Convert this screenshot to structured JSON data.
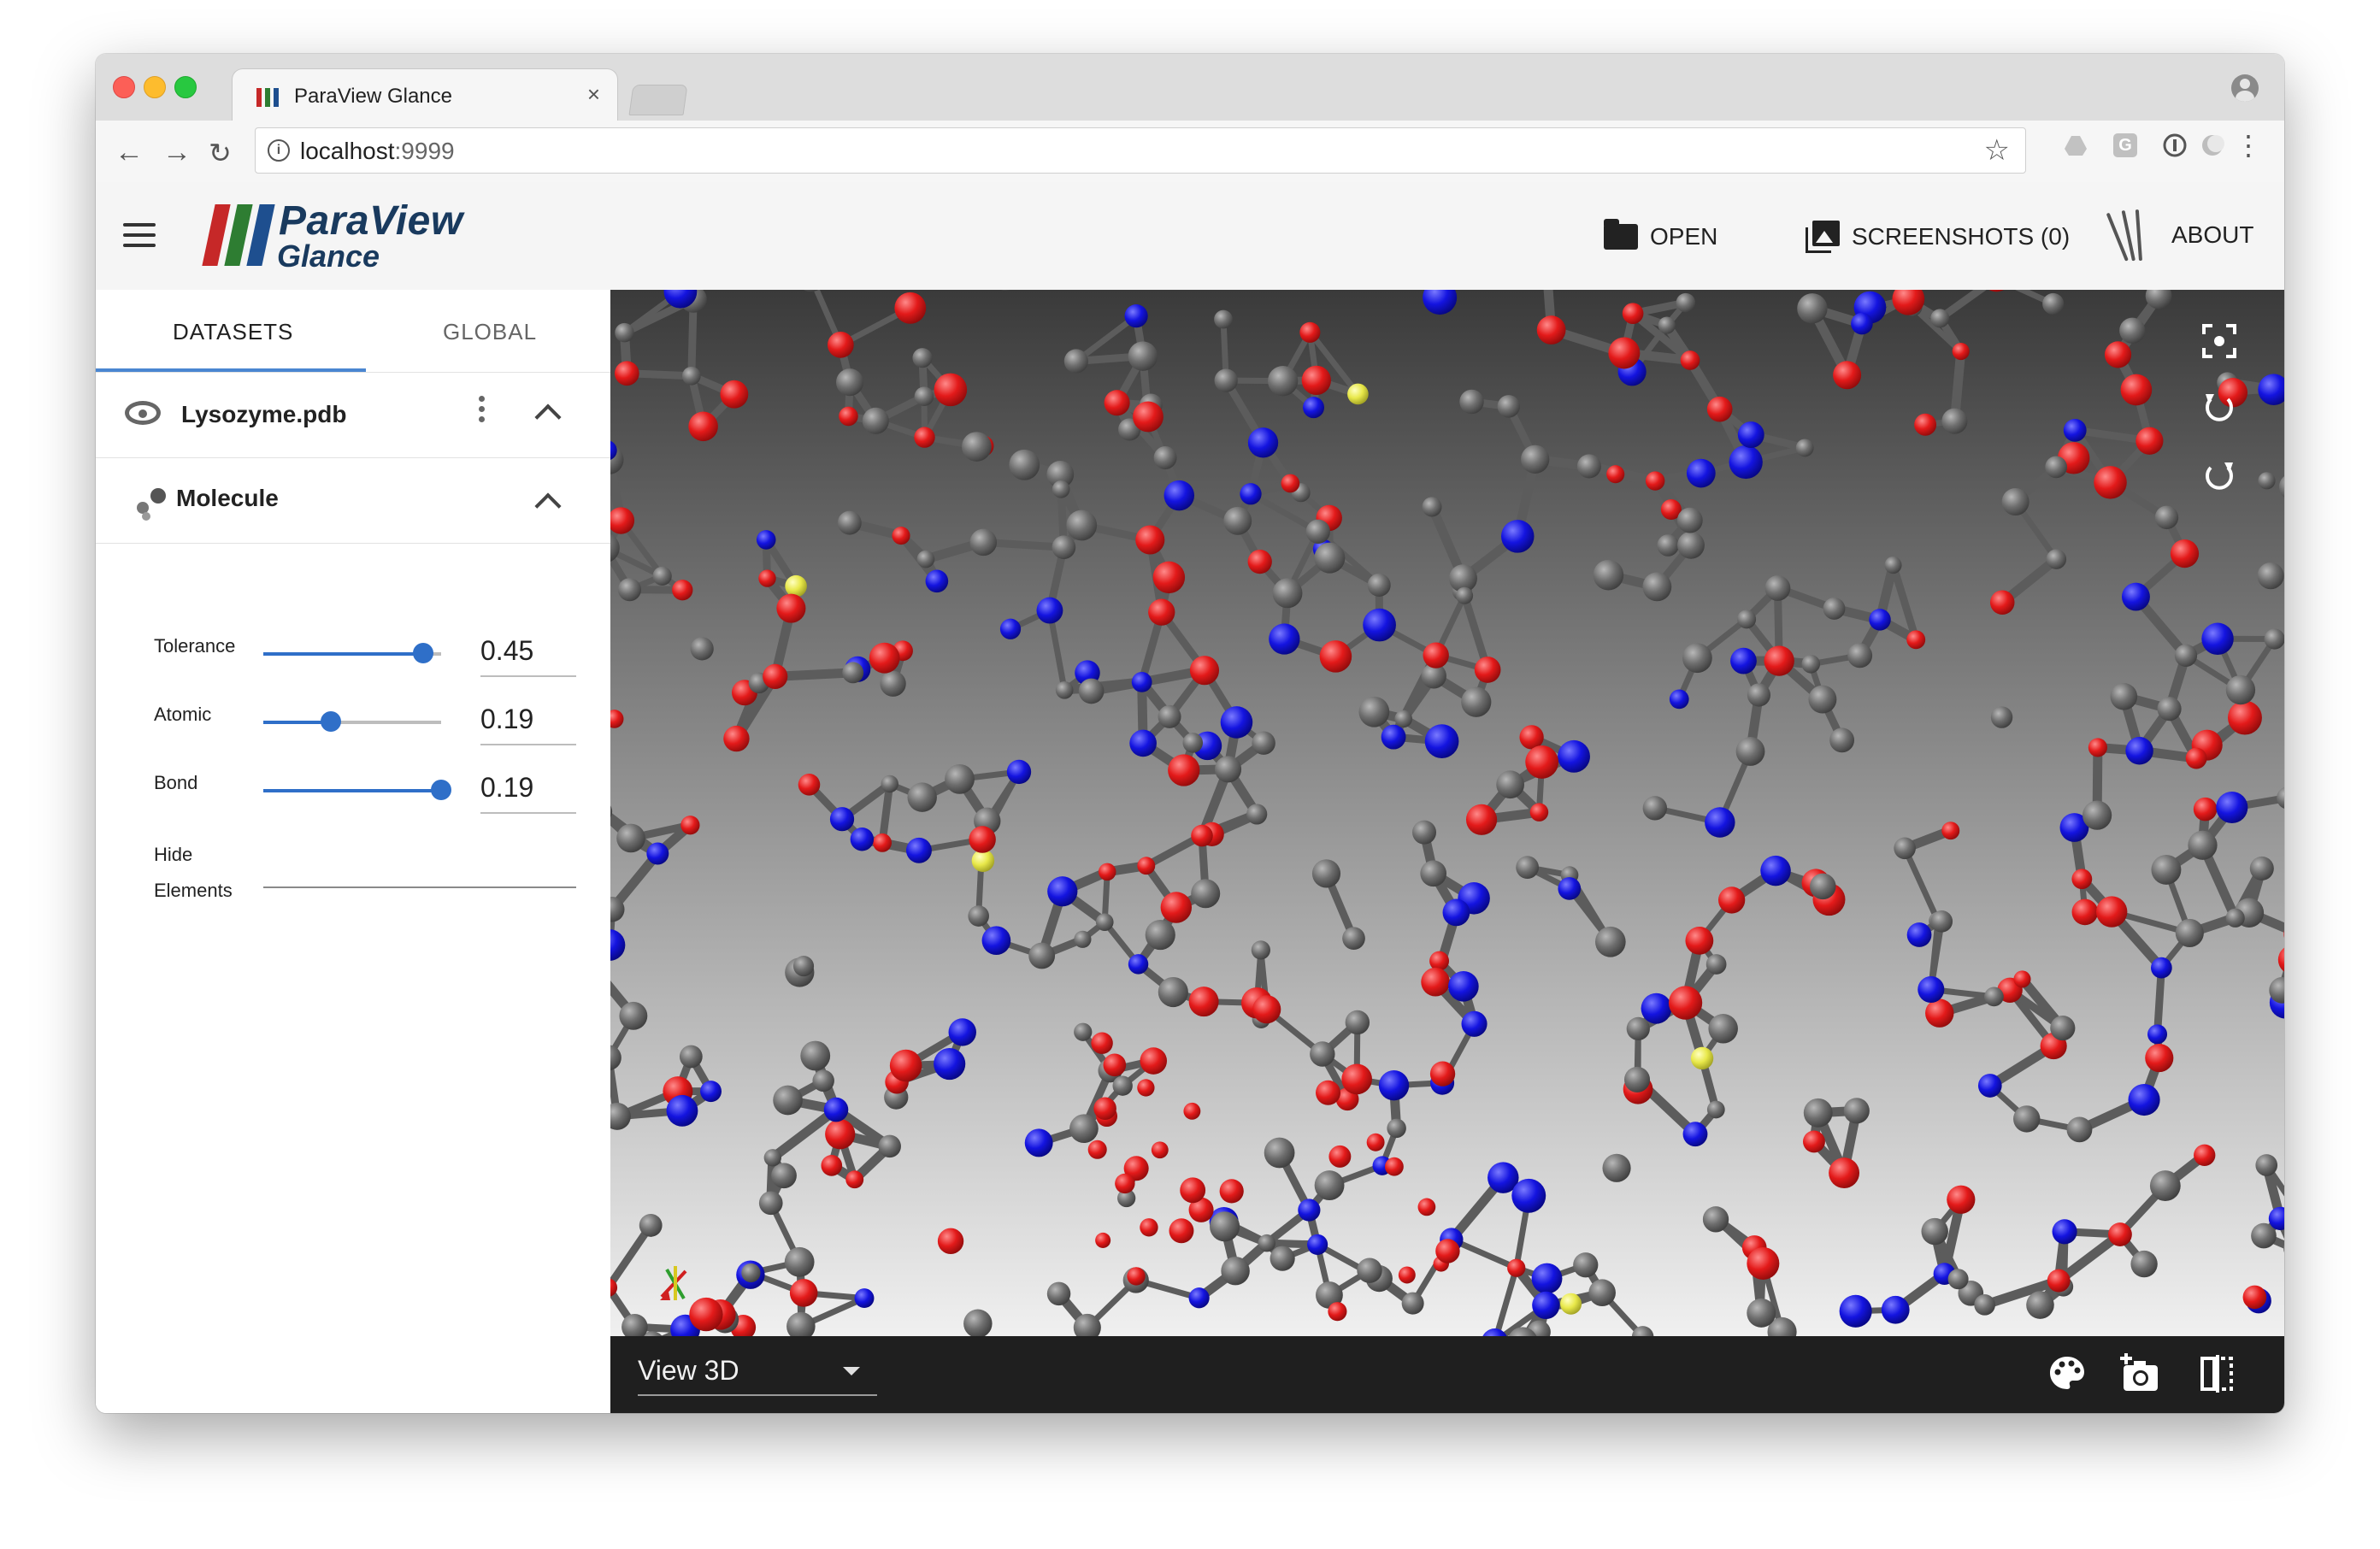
{
  "browser": {
    "tab_title": "ParaView Glance",
    "tab_close": "×",
    "url_host": "localhost",
    "url_port": ":9999",
    "ext_g_label": "G"
  },
  "app": {
    "logo_title": "ParaView",
    "logo_sub": "Glance",
    "open_label": "OPEN",
    "screenshots_label": "SCREENSHOTS (0)",
    "about_label": "ABOUT"
  },
  "sidebar": {
    "tabs": [
      {
        "label": "DATASETS",
        "active": true
      },
      {
        "label": "GLOBAL",
        "active": false
      }
    ],
    "dataset_name": "Lysozyme.pdb",
    "section_label": "Molecule",
    "params": [
      {
        "label": "Tolerance",
        "value": "0.45",
        "slider_fraction": 0.9
      },
      {
        "label": "Atomic",
        "value": "0.19",
        "slider_fraction": 0.38
      },
      {
        "label": "Bond",
        "value": "0.19",
        "slider_fraction": 1.0
      }
    ],
    "hide_label_line1": "Hide",
    "hide_label_line2": "Elements"
  },
  "view": {
    "selected_view": "View 3D",
    "colors": {
      "carbon": "#6e6e6e",
      "oxygen": "#e31a1a",
      "nitrogen": "#1414e0",
      "sulfur": "#e8e84a",
      "background_top": "#3a3a3a",
      "background_bottom": "#f0f0f0"
    }
  },
  "icons": {
    "reset_camera": "reset-camera-icon",
    "rotate_left": "rotate-left-icon",
    "rotate_right": "rotate-right-icon",
    "palette": "palette-icon",
    "add_screenshot": "camera-add-icon",
    "split_view": "split-view-icon"
  }
}
